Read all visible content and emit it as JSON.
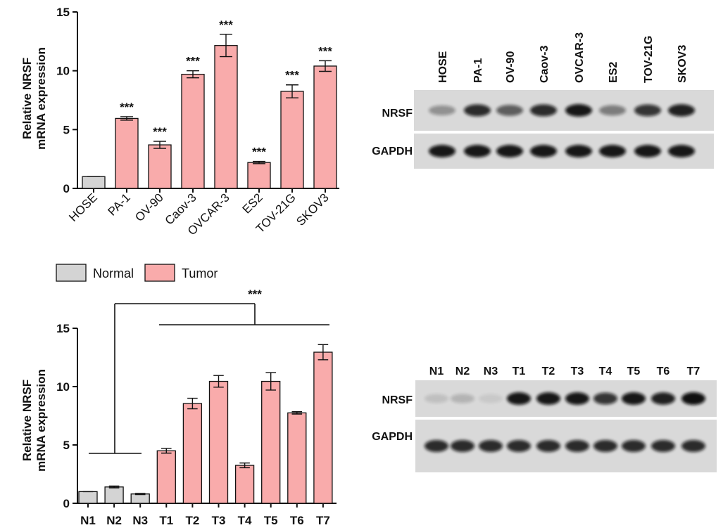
{
  "chart_data": [
    {
      "type": "bar",
      "ylabel": [
        "Relative NRSF",
        "mRNA expression"
      ],
      "categories": [
        "HOSE",
        "PA-1",
        "OV-90",
        "Caov-3",
        "OVCAR-3",
        "ES2",
        "TOV-21G",
        "SKOV3"
      ],
      "values": [
        1,
        5.95,
        3.7,
        9.7,
        12.15,
        2.2,
        8.25,
        10.4
      ],
      "errors": [
        0,
        0.15,
        0.3,
        0.3,
        0.95,
        0.1,
        0.55,
        0.45
      ],
      "colors": [
        "#d4d4d4",
        "#f9abab",
        "#f9abab",
        "#f9abab",
        "#f9abab",
        "#f9abab",
        "#f9abab",
        "#f9abab"
      ],
      "annotations": [
        null,
        "***",
        "***",
        "***",
        "***",
        "***",
        "***",
        "***"
      ],
      "ylim": [
        0,
        15
      ],
      "yticks": [
        0,
        5,
        10,
        15
      ]
    },
    {
      "type": "bar",
      "ylabel": [
        "Relative NRSF",
        "mRNA expression"
      ],
      "categories": [
        "N1",
        "N2",
        "N3",
        "T1",
        "T2",
        "T3",
        "T4",
        "T5",
        "T6",
        "T7"
      ],
      "series": [
        {
          "name": "Normal",
          "color": "#d4d4d4",
          "values": [
            1,
            1.4,
            0.8,
            null,
            null,
            null,
            null,
            null,
            null,
            null
          ],
          "errors": [
            0,
            0.08,
            0.05,
            null,
            null,
            null,
            null,
            null,
            null,
            null
          ]
        },
        {
          "name": "Tumor",
          "color": "#f9abab",
          "values": [
            null,
            null,
            null,
            4.5,
            8.55,
            10.45,
            3.25,
            10.45,
            7.75,
            12.95
          ],
          "errors": [
            null,
            null,
            null,
            0.2,
            0.45,
            0.5,
            0.2,
            0.75,
            0.1,
            0.65
          ]
        }
      ],
      "annotation": "***",
      "ylim": [
        0,
        15
      ],
      "yticks": [
        0,
        5,
        10,
        15
      ]
    }
  ],
  "blots": [
    {
      "lanes": [
        "HOSE",
        "PA-1",
        "OV-90",
        "Caov-3",
        "OVCAR-3",
        "ES2",
        "TOV-21G",
        "SKOV3"
      ],
      "rows": [
        "NRSF",
        "GAPDH"
      ]
    },
    {
      "lanes": [
        "N1",
        "N2",
        "N3",
        "T1",
        "T2",
        "T3",
        "T4",
        "T5",
        "T6",
        "T7"
      ],
      "rows": [
        "NRSF",
        "GAPDH"
      ]
    }
  ]
}
